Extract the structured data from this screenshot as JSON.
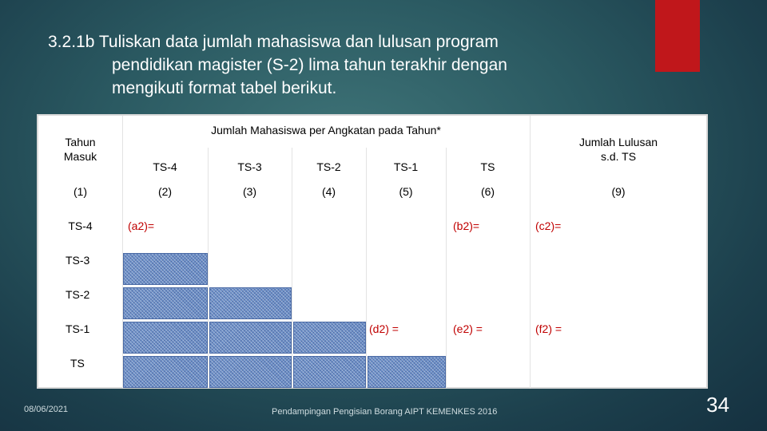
{
  "slide": {
    "title_lines": [
      "3.2.1b Tuliskan data jumlah mahasiswa dan lulusan program",
      "pendidikan magister (S-2)  lima tahun terakhir dengan",
      "mengikuti format tabel berikut."
    ],
    "footer_date": "08/06/2021",
    "footer_center": "Pendampingan Pengisian Borang AIPT KEMENKES 2016",
    "page_number": "34",
    "accent_color": "#c0171b"
  },
  "table": {
    "header_tahun": "Tahun\nMasuk",
    "header_group": "Jumlah Mahasiswa per Angkatan pada Tahun*",
    "header_lulusan": "Jumlah Lulusan\ns.d. TS",
    "sub_headers": [
      "TS-4",
      "TS-3",
      "TS-2",
      "TS-1",
      "TS"
    ],
    "column_numbers": [
      "(1)",
      "(2)",
      "(3)",
      "(4)",
      "(5)",
      "(6)",
      "(9)"
    ],
    "rows": [
      {
        "label": "TS-4",
        "a": "(a2)=",
        "b": "(b2)=",
        "c": "(c2)="
      },
      {
        "label": "TS-3"
      },
      {
        "label": "TS-2"
      },
      {
        "label": "TS-1",
        "d": "(d2) =",
        "e": "(e2) =",
        "f": "(f2) ="
      },
      {
        "label": "TS"
      }
    ],
    "hatch_color": "#6c8fc7",
    "label_color": "#c00000"
  }
}
